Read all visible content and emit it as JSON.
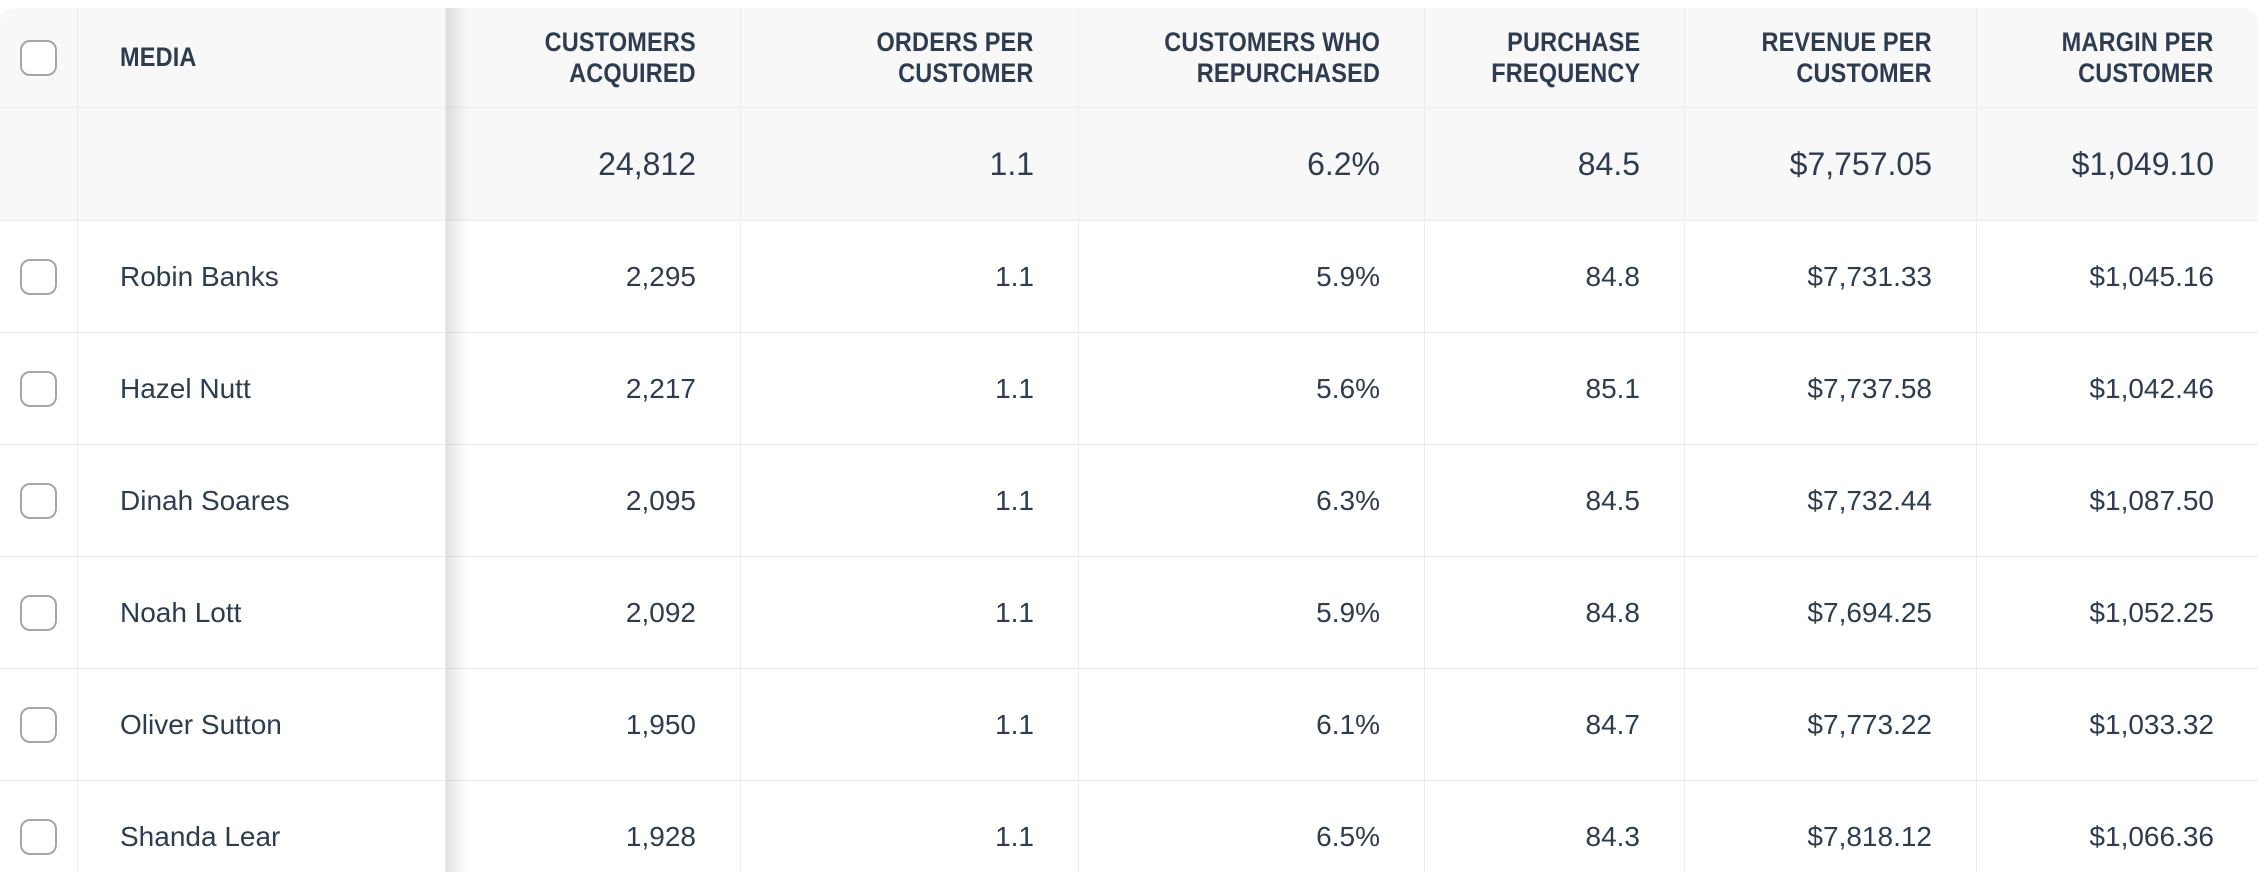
{
  "table": {
    "columns": [
      {
        "id": "media",
        "label": "MEDIA",
        "align": "left"
      },
      {
        "id": "customers_acquired",
        "label": "CUSTOMERS\nACQUIRED",
        "align": "right"
      },
      {
        "id": "orders_per_customer",
        "label": "ORDERS PER\nCUSTOMER",
        "align": "right"
      },
      {
        "id": "customers_who_repurchased",
        "label": "CUSTOMERS WHO\nREPURCHASED",
        "align": "right"
      },
      {
        "id": "purchase_frequency",
        "label": "PURCHASE\nFREQUENCY",
        "align": "right"
      },
      {
        "id": "revenue_per_customer",
        "label": "REVENUE PER\nCUSTOMER",
        "align": "right"
      },
      {
        "id": "margin_per_customer",
        "label": "MARGIN PER\nCUSTOMER",
        "align": "right"
      }
    ],
    "totals": {
      "customers_acquired": "24,812",
      "orders_per_customer": "1.1",
      "customers_who_repurchased": "6.2%",
      "purchase_frequency": "84.5",
      "revenue_per_customer": "$7,757.05",
      "margin_per_customer": "$1,049.10"
    },
    "rows": [
      {
        "media": "Robin Banks",
        "customers_acquired": "2,295",
        "orders_per_customer": "1.1",
        "customers_who_repurchased": "5.9%",
        "purchase_frequency": "84.8",
        "revenue_per_customer": "$7,731.33",
        "margin_per_customer": "$1,045.16"
      },
      {
        "media": "Hazel Nutt",
        "customers_acquired": "2,217",
        "orders_per_customer": "1.1",
        "customers_who_repurchased": "5.6%",
        "purchase_frequency": "85.1",
        "revenue_per_customer": "$7,737.58",
        "margin_per_customer": "$1,042.46"
      },
      {
        "media": "Dinah Soares",
        "customers_acquired": "2,095",
        "orders_per_customer": "1.1",
        "customers_who_repurchased": "6.3%",
        "purchase_frequency": "84.5",
        "revenue_per_customer": "$7,732.44",
        "margin_per_customer": "$1,087.50"
      },
      {
        "media": "Noah Lott",
        "customers_acquired": "2,092",
        "orders_per_customer": "1.1",
        "customers_who_repurchased": "5.9%",
        "purchase_frequency": "84.8",
        "revenue_per_customer": "$7,694.25",
        "margin_per_customer": "$1,052.25"
      },
      {
        "media": "Oliver Sutton",
        "customers_acquired": "1,950",
        "orders_per_customer": "1.1",
        "customers_who_repurchased": "6.1%",
        "purchase_frequency": "84.7",
        "revenue_per_customer": "$7,773.22",
        "margin_per_customer": "$1,033.32"
      },
      {
        "media": "Shanda Lear",
        "customers_acquired": "1,928",
        "orders_per_customer": "1.1",
        "customers_who_repurchased": "6.5%",
        "purchase_frequency": "84.3",
        "revenue_per_customer": "$7,818.12",
        "margin_per_customer": "$1,066.36"
      }
    ]
  },
  "colors": {
    "text": "#2d3c4f",
    "border": "#ececee",
    "header_bg": "#f8f8f9",
    "row_bg": "#ffffff",
    "checkbox_border": "#a6a6a6",
    "sticky_shadow": "rgba(60,64,67,0.15)"
  }
}
